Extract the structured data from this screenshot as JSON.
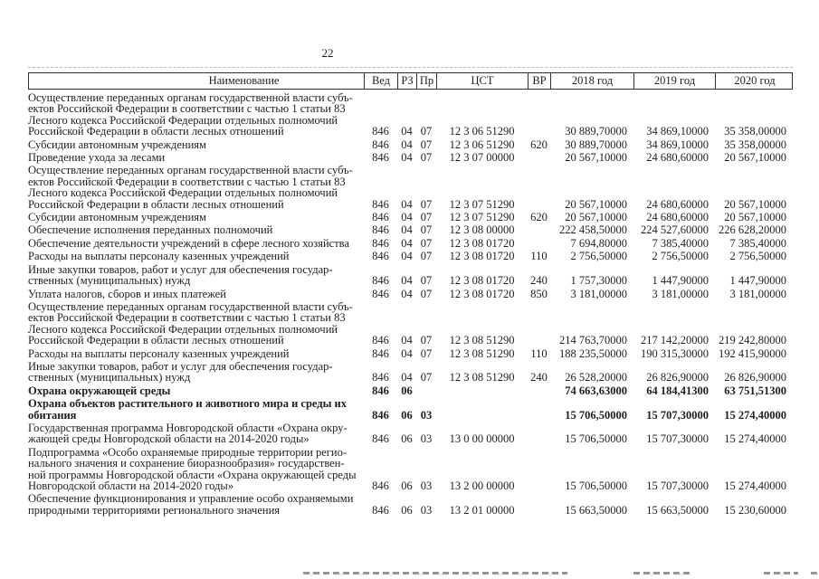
{
  "page": {
    "number": "22"
  },
  "table": {
    "columns": [
      {
        "key": "name",
        "label": "Наименование"
      },
      {
        "key": "ved",
        "label": "Вед"
      },
      {
        "key": "rz",
        "label": "РЗ"
      },
      {
        "key": "pr",
        "label": "Пр"
      },
      {
        "key": "cst",
        "label": "ЦСТ"
      },
      {
        "key": "vr",
        "label": "ВР"
      },
      {
        "key": "y2018",
        "label": "2018 год"
      },
      {
        "key": "y2019",
        "label": "2019 год"
      },
      {
        "key": "y2020",
        "label": "2020 год"
      }
    ],
    "rows": [
      {
        "name": "Осуществление переданных органам государственной власти субъ-\nектов Российской Федерации в соответствии с частью 1 статьи 83\nЛесного кодекса Российской Федерации отдельных полномочий\nРоссийской Федерации в области лесных отношений",
        "ved": "846",
        "rz": "04",
        "pr": "07",
        "cst": "12 3 06 51290",
        "vr": "",
        "y2018": "30 889,70000",
        "y2019": "34 869,10000",
        "y2020": "35 358,00000",
        "bold": false
      },
      {
        "name": "Субсидии автономным учреждениям",
        "ved": "846",
        "rz": "04",
        "pr": "07",
        "cst": "12 3 06 51290",
        "vr": "620",
        "y2018": "30 889,70000",
        "y2019": "34 869,10000",
        "y2020": "35 358,00000",
        "bold": false
      },
      {
        "name": "Проведение ухода за лесами",
        "ved": "846",
        "rz": "04",
        "pr": "07",
        "cst": "12 3 07 00000",
        "vr": "",
        "y2018": "20 567,10000",
        "y2019": "24 680,60000",
        "y2020": "20 567,10000",
        "bold": false
      },
      {
        "name": "Осуществление переданных органам государственной власти субъ-\nектов Российской Федерации в соответствии с частью 1 статьи 83\nЛесного кодекса Российской Федерации отдельных полномочий\nРоссийской Федерации в области лесных отношений",
        "ved": "846",
        "rz": "04",
        "pr": "07",
        "cst": "12 3 07 51290",
        "vr": "",
        "y2018": "20 567,10000",
        "y2019": "24 680,60000",
        "y2020": "20 567,10000",
        "bold": false
      },
      {
        "name": "Субсидии автономным учреждениям",
        "ved": "846",
        "rz": "04",
        "pr": "07",
        "cst": "12 3 07 51290",
        "vr": "620",
        "y2018": "20 567,10000",
        "y2019": "24 680,60000",
        "y2020": "20 567,10000",
        "bold": false
      },
      {
        "name": "Обеспечение исполнения переданных полномочий",
        "ved": "846",
        "rz": "04",
        "pr": "07",
        "cst": "12 3 08 00000",
        "vr": "",
        "y2018": "222 458,50000",
        "y2019": "224 527,60000",
        "y2020": "226 628,20000",
        "bold": false
      },
      {
        "name": "Обеспечение деятельности учреждений в сфере лесного хозяйства",
        "ved": "846",
        "rz": "04",
        "pr": "07",
        "cst": "12 3 08 01720",
        "vr": "",
        "y2018": "7 694,80000",
        "y2019": "7 385,40000",
        "y2020": "7 385,40000",
        "bold": false
      },
      {
        "name": "Расходы на выплаты персоналу казенных учреждений",
        "ved": "846",
        "rz": "04",
        "pr": "07",
        "cst": "12 3 08 01720",
        "vr": "110",
        "y2018": "2 756,50000",
        "y2019": "2 756,50000",
        "y2020": "2 756,50000",
        "bold": false
      },
      {
        "name": "Иные закупки товаров, работ и услуг для обеспечения государ-\nственных (муниципальных) нужд",
        "ved": "846",
        "rz": "04",
        "pr": "07",
        "cst": "12 3 08 01720",
        "vr": "240",
        "y2018": "1 757,30000",
        "y2019": "1 447,90000",
        "y2020": "1 447,90000",
        "bold": false
      },
      {
        "name": "Уплата налогов, сборов и иных платежей",
        "ved": "846",
        "rz": "04",
        "pr": "07",
        "cst": "12 3 08 01720",
        "vr": "850",
        "y2018": "3 181,00000",
        "y2019": "3 181,00000",
        "y2020": "3 181,00000",
        "bold": false
      },
      {
        "name": "Осуществление переданных органам государственной власти субъ-\nектов Российской Федерации в соответствии с частью 1 статьи 83\nЛесного кодекса Российской Федерации отдельных полномочий\nРоссийской Федерации в области лесных отношений",
        "ved": "846",
        "rz": "04",
        "pr": "07",
        "cst": "12 3 08 51290",
        "vr": "",
        "y2018": "214 763,70000",
        "y2019": "217 142,20000",
        "y2020": "219 242,80000",
        "bold": false
      },
      {
        "name": "Расходы на выплаты персоналу казенных учреждений",
        "ved": "846",
        "rz": "04",
        "pr": "07",
        "cst": "12 3 08 51290",
        "vr": "110",
        "y2018": "188 235,50000",
        "y2019": "190 315,30000",
        "y2020": "192 415,90000",
        "bold": false
      },
      {
        "name": "Иные закупки товаров, работ и услуг для обеспечения государ-\nственных (муниципальных) нужд",
        "ved": "846",
        "rz": "04",
        "pr": "07",
        "cst": "12 3 08 51290",
        "vr": "240",
        "y2018": "26 528,20000",
        "y2019": "26 826,90000",
        "y2020": "26 826,90000",
        "bold": false
      },
      {
        "name": "Охрана окружающей среды",
        "ved": "846",
        "rz": "06",
        "pr": "",
        "cst": "",
        "vr": "",
        "y2018": "74 663,63000",
        "y2019": "64 184,41300",
        "y2020": "63 751,51300",
        "bold": true
      },
      {
        "name": "Охрана объектов растительного и животного мира и среды их\nобитания",
        "ved": "846",
        "rz": "06",
        "pr": "03",
        "cst": "",
        "vr": "",
        "y2018": "15 706,50000",
        "y2019": "15 707,30000",
        "y2020": "15 274,40000",
        "bold": true
      },
      {
        "name": "Государственная программа Новгородской области «Охрана окру-\nжающей среды Новгородской области на 2014-2020 годы»",
        "ved": "846",
        "rz": "06",
        "pr": "03",
        "cst": "13 0 00 00000",
        "vr": "",
        "y2018": "15 706,50000",
        "y2019": "15 707,30000",
        "y2020": "15 274,40000",
        "bold": false
      },
      {
        "name": "Подпрограмма «Особо охраняемые природные территории регио-\nнального значения и сохранение биоразнообразия» государствен-\nной программы Новгородской области «Охрана окружающей среды\nНовгородской области на 2014-2020 годы»",
        "ved": "846",
        "rz": "06",
        "pr": "03",
        "cst": "13 2 00 00000",
        "vr": "",
        "y2018": "15 706,50000",
        "y2019": "15 707,30000",
        "y2020": "15 274,40000",
        "bold": false
      },
      {
        "name": "Обеспечение функционирования и управление особо охраняемыми\nприродными территориями регионального значения",
        "ved": "846",
        "rz": "06",
        "pr": "03",
        "cst": "13 2 01 00000",
        "vr": "",
        "y2018": "15 663,50000",
        "y2019": "15 663,50000",
        "y2020": "15 230,60000",
        "bold": false
      }
    ]
  }
}
